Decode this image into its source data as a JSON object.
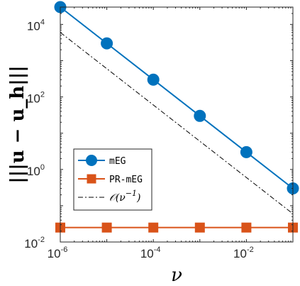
{
  "chart_data": {
    "type": "line",
    "xscale": "log",
    "yscale": "log",
    "xlim": [
      1e-06,
      0.1
    ],
    "ylim": [
      0.01,
      30000
    ],
    "xlabel": "ν",
    "ylabel": "|||u − u_h|||",
    "xticks": [
      1e-06,
      0.0001,
      0.01
    ],
    "xtick_labels": [
      {
        "base": "10",
        "exp": "-6"
      },
      {
        "base": "10",
        "exp": "-4"
      },
      {
        "base": "10",
        "exp": "-2"
      }
    ],
    "yticks": [
      0.01,
      1,
      100,
      10000
    ],
    "ytick_labels": [
      {
        "base": "10",
        "exp": "-2"
      },
      {
        "base": "10",
        "exp": "0"
      },
      {
        "base": "10",
        "exp": "2"
      },
      {
        "base": "10",
        "exp": "4"
      }
    ],
    "series": [
      {
        "name": "mEG",
        "color": "#0072BD",
        "marker": "circle",
        "x": [
          1e-06,
          1e-05,
          0.0001,
          0.001,
          0.01,
          0.1
        ],
        "y": [
          30000,
          3000,
          300,
          30,
          3,
          0.3
        ]
      },
      {
        "name": "PR-mEG",
        "color": "#D95319",
        "marker": "square",
        "x": [
          1e-06,
          1e-05,
          0.0001,
          0.001,
          0.01,
          0.1
        ],
        "y": [
          0.025,
          0.025,
          0.025,
          0.025,
          0.025,
          0.025
        ]
      },
      {
        "name": "O(ν⁻¹)",
        "color": "#000000",
        "style": "dash-dot",
        "x": [
          1e-06,
          0.1
        ],
        "y": [
          6000,
          0.06
        ]
      }
    ],
    "legend": {
      "placement": "bottom-left",
      "entries": [
        {
          "label": "mEG"
        },
        {
          "label": "PR-mEG"
        },
        {
          "label_prefix": "𝒪(ν",
          "label_exp": "−1",
          "label_suffix": ")"
        }
      ]
    },
    "grid": false
  }
}
